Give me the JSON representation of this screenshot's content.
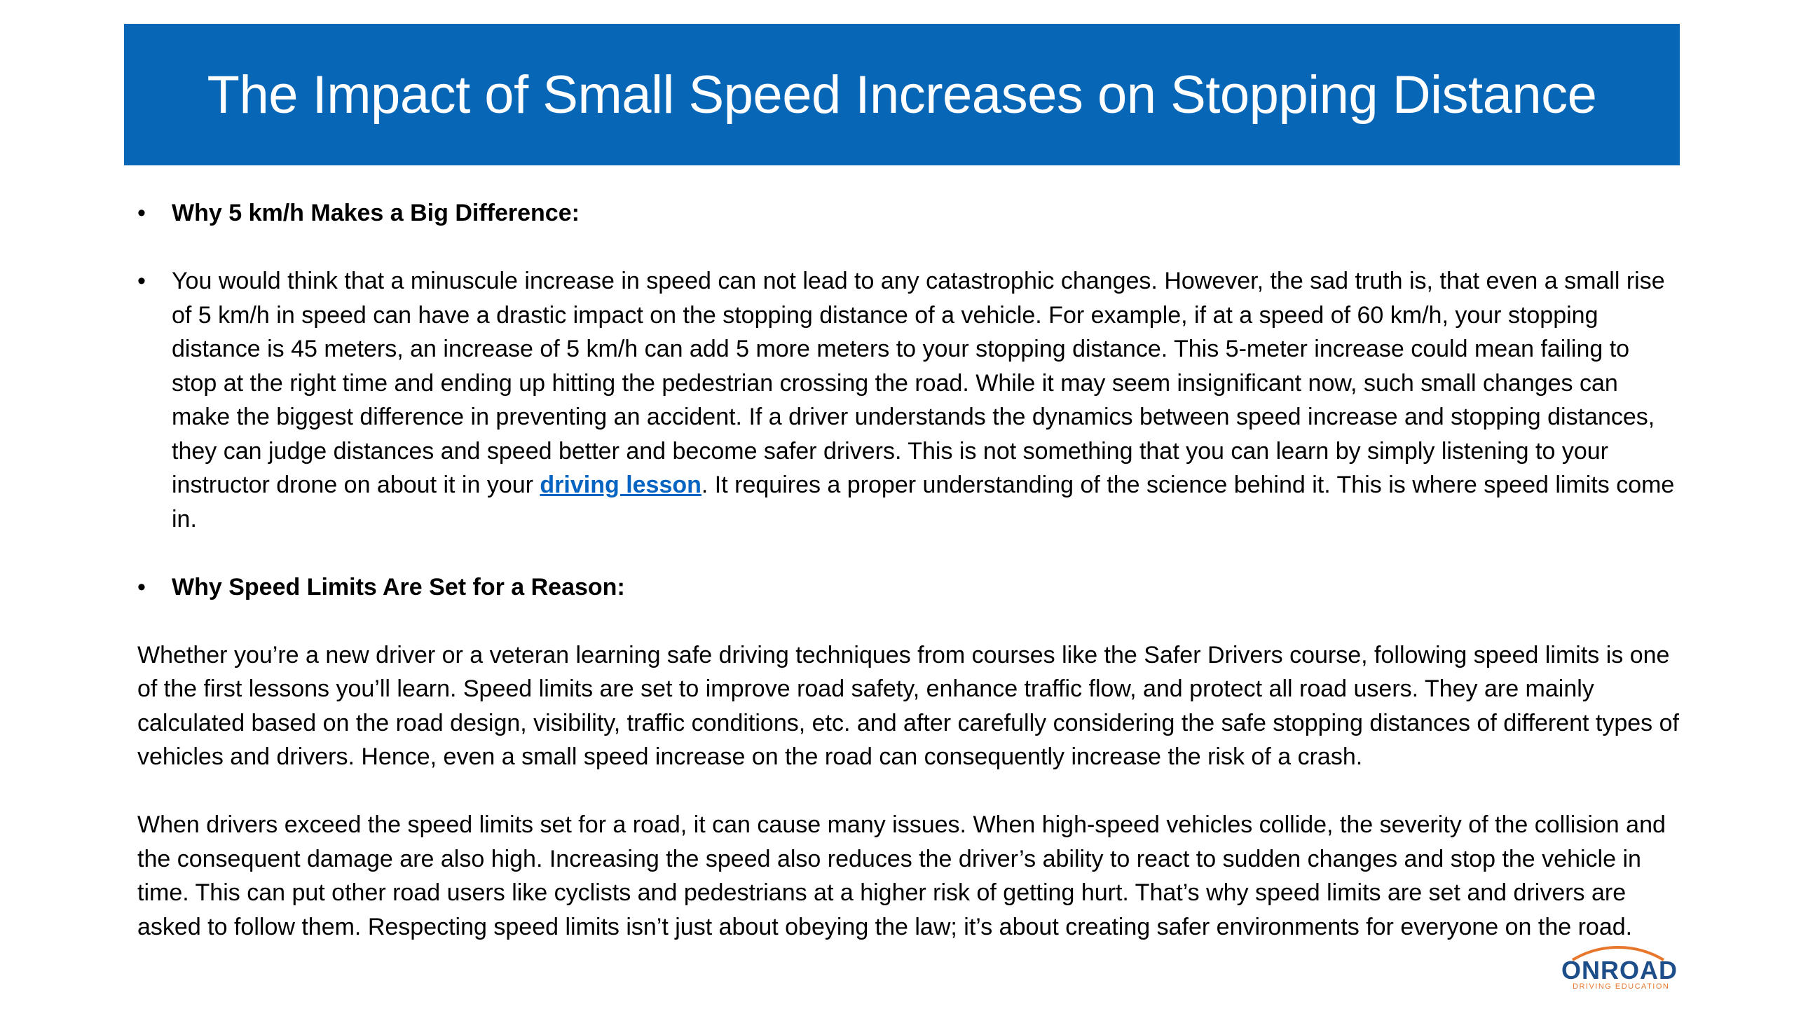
{
  "title": "The Impact of Small Speed Increases on Stopping Distance",
  "bullets": {
    "b1_heading": "Why 5 km/h Makes a Big Difference:",
    "b2_text_before_link": "You would think that a minuscule increase in speed can not lead to any catastrophic changes. However, the sad truth is, that even a small rise of 5 km/h in speed can have a drastic impact on the stopping distance of a vehicle. For example, if at a speed of 60 km/h, your stopping distance is 45 meters, an increase of 5 km/h can add 5 more meters to your stopping distance. This 5-meter increase could mean failing to stop at the right time and ending up hitting the pedestrian crossing the road. While it may seem insignificant now, such small changes can make the biggest difference in preventing an accident. If a driver understands the dynamics between speed increase and stopping distances, they can judge distances and speed better and become safer drivers. This is not something that you can learn by simply listening to your instructor drone on about it in your ",
    "b2_link": "driving lesson",
    "b2_text_after_link": ". It requires a proper understanding of the science behind it. This is where speed limits come in.",
    "b3_heading": "Why Speed Limits Are Set for a Reason:"
  },
  "paragraphs": {
    "p1": "Whether you’re a new driver or a veteran learning safe driving techniques from courses like the Safer Drivers course, following speed limits is one of the first lessons you’ll learn. Speed limits are set to improve road safety, enhance traffic flow, and protect all road users. They are mainly calculated based on the road design, visibility, traffic conditions, etc. and after carefully considering the safe stopping distances of different types of vehicles and drivers. Hence, even a small speed increase on the road can consequently increase the risk of a crash.",
    "p2": "When drivers exceed the speed limits set for a road, it can cause many issues. When high-speed vehicles collide, the severity of the collision and the consequent damage are also high. Increasing the speed also reduces the driver’s ability to react to sudden changes and stop the vehicle in time. This can put other road users like cyclists and pedestrians at a higher risk of getting hurt. That’s why speed limits are set and drivers are asked to follow them. Respecting speed limits isn’t just about obeying the law; it’s about creating safer environments for everyone on the road."
  },
  "bullet_char": "•",
  "logo": {
    "word": "ONROAD",
    "tagline": "DRIVING EDUCATION",
    "icon": "car-roof-arc-icon"
  },
  "colors": {
    "banner": "#0866b7",
    "link": "#0563c1",
    "logo_blue": "#1d4e89",
    "logo_orange": "#e8772e"
  }
}
